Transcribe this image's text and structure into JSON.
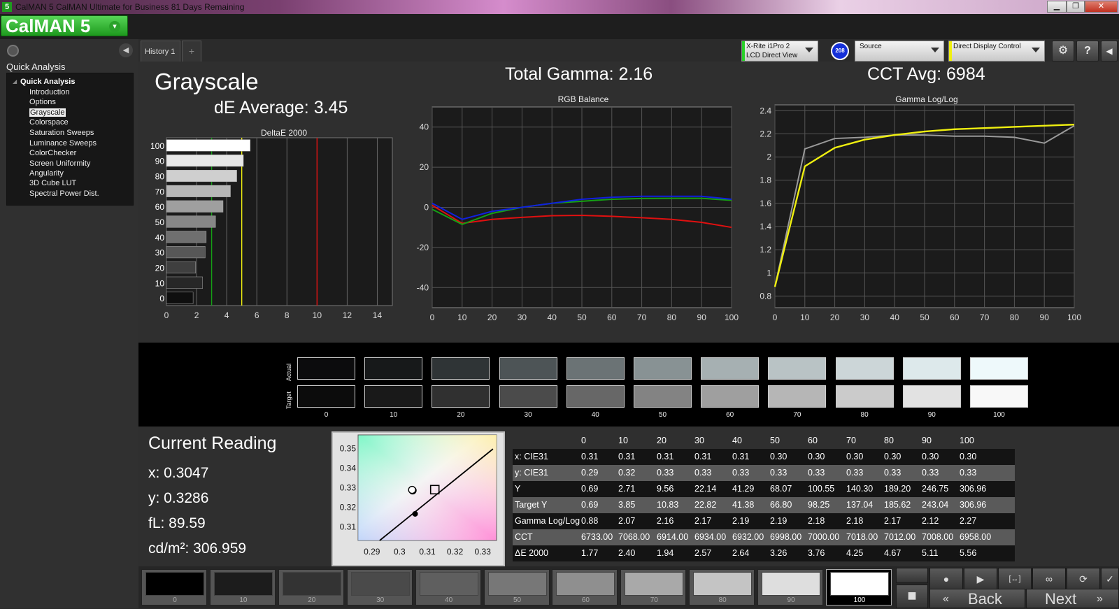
{
  "window": {
    "title": "CalMAN 5 CalMAN Ultimate for Business 81 Days Remaining",
    "app_icon": "5",
    "min": "▁",
    "max": "❐",
    "close": "✕"
  },
  "logo": {
    "text": "CalMAN 5",
    "arrow": "▾"
  },
  "sidebar": {
    "title": "Quick Analysis",
    "collapse_icon": "◀",
    "tree_root": "Quick Analysis",
    "items": [
      "Introduction",
      "Options",
      "Grayscale",
      "Colorspace",
      "Saturation Sweeps",
      "Luminance Sweeps",
      "ColorChecker",
      "Screen Uniformity",
      "Angularity",
      "3D Cube LUT",
      "Spectral Power Dist."
    ],
    "selected": "Grayscale"
  },
  "tabs": {
    "history": "History 1",
    "add": "+"
  },
  "devices": {
    "meter": {
      "line1": "X-Rite i1Pro 2",
      "line2": "LCD Direct View",
      "badge": "208"
    },
    "source": {
      "label": "Source"
    },
    "display": {
      "label": "Direct Display Control"
    }
  },
  "toolbar": {
    "settings_icon": "⚙",
    "help_icon": "?",
    "collapse_icon": "◀"
  },
  "page": {
    "title": "Grayscale",
    "de_avg": "dE Average: 3.45",
    "total_gamma": "Total Gamma: 2.16",
    "cct_avg": "CCT Avg: 6984"
  },
  "colors": {
    "red": "#e01010",
    "green": "#15a015",
    "blue": "#1020e0",
    "yellow": "#f0f010"
  },
  "chart_data": [
    {
      "type": "bar",
      "title": "DeltaE 2000",
      "orientation": "horizontal",
      "categories": [
        "100",
        "90",
        "80",
        "70",
        "60",
        "50",
        "40",
        "30",
        "20",
        "10",
        "0"
      ],
      "values": [
        5.56,
        5.11,
        4.67,
        4.25,
        3.76,
        3.26,
        2.64,
        2.57,
        1.94,
        2.4,
        1.77
      ],
      "xlim": [
        0,
        15
      ],
      "xticks": [
        0,
        2,
        4,
        6,
        8,
        10,
        12,
        14
      ],
      "thresholds": [
        {
          "value": 3,
          "color": "green"
        },
        {
          "value": 5,
          "color": "yellow"
        },
        {
          "value": 10,
          "color": "red"
        }
      ]
    },
    {
      "type": "line",
      "title": "RGB Balance",
      "x": [
        0,
        10,
        20,
        30,
        40,
        50,
        60,
        70,
        80,
        90,
        100
      ],
      "ylim": [
        -50,
        50
      ],
      "yticks": [
        40,
        20,
        0,
        -20,
        -40
      ],
      "xticks": [
        0,
        10,
        20,
        30,
        40,
        50,
        60,
        70,
        80,
        90,
        100
      ],
      "series": [
        {
          "color": "red",
          "values": [
            1,
            -8,
            -6,
            -5,
            -4.2,
            -4,
            -4.5,
            -5.2,
            -6,
            -7.5,
            -10
          ]
        },
        {
          "color": "green",
          "values": [
            -1,
            -8.5,
            -3,
            0,
            2,
            3,
            4,
            4.4,
            4.5,
            4.5,
            3.5
          ]
        },
        {
          "color": "blue",
          "values": [
            2,
            -6,
            -2,
            0,
            2,
            4,
            5,
            5.5,
            5.5,
            5.5,
            4
          ]
        }
      ]
    },
    {
      "type": "line",
      "title": "Gamma Log/Log",
      "x": [
        0,
        10,
        20,
        30,
        40,
        50,
        60,
        70,
        80,
        90,
        100
      ],
      "ylim": [
        0.7,
        2.45
      ],
      "yticks": [
        2.4,
        2.2,
        2,
        1.8,
        1.6,
        1.4,
        1.2,
        1,
        0.8
      ],
      "xticks": [
        0,
        10,
        20,
        30,
        40,
        50,
        60,
        70,
        80,
        90,
        100
      ],
      "series": [
        {
          "color": "gray",
          "values": [
            0.88,
            2.07,
            2.16,
            2.17,
            2.19,
            2.19,
            2.18,
            2.18,
            2.17,
            2.12,
            2.27
          ]
        },
        {
          "color": "yellow",
          "values": [
            0.88,
            1.92,
            2.08,
            2.15,
            2.19,
            2.22,
            2.24,
            2.25,
            2.26,
            2.27,
            2.28
          ]
        }
      ]
    },
    {
      "type": "scatter",
      "title": "",
      "xlim": [
        0.285,
        0.335
      ],
      "ylim": [
        0.303,
        0.357
      ],
      "xticks": [
        "0.29",
        "0.3",
        "0.31",
        "0.32",
        "0.33"
      ],
      "yticks": [
        "0.35",
        "0.34",
        "0.33",
        "0.32",
        "0.31"
      ],
      "target": {
        "x": 0.3127,
        "y": 0.329
      },
      "measured": [
        {
          "x": 0.3047,
          "y": 0.3286
        },
        {
          "x": 0.3045,
          "y": 0.3289
        }
      ],
      "locus": {
        "start": [
          0.2928,
          0.303
        ],
        "end": [
          0.3337,
          0.3498
        ],
        "dot": [
          0.3056,
          0.3166
        ]
      }
    }
  ],
  "swatches": {
    "labels": [
      "0",
      "10",
      "20",
      "30",
      "40",
      "50",
      "60",
      "70",
      "80",
      "90",
      "100"
    ],
    "actual_label": "Actual",
    "target_label": "Target",
    "actual": [
      "#0c0c0d",
      "#17191a",
      "#2f3436",
      "#4d5456",
      "#6b7375",
      "#889294",
      "#a6b0b2",
      "#b9c3c5",
      "#ccd6d8",
      "#dde9eb",
      "#eef9fb"
    ],
    "target": [
      "#0c0c0c",
      "#191919",
      "#303030",
      "#4b4b4b",
      "#676767",
      "#838383",
      "#9f9f9f",
      "#b6b6b6",
      "#cbcbcb",
      "#e2e2e2",
      "#f8f8f8"
    ]
  },
  "current_reading": {
    "title": "Current Reading",
    "x": "x: 0.3047",
    "y": "y: 0.3286",
    "fl": "fL: 89.59",
    "cdm2": "cd/m²: 306.959"
  },
  "table": {
    "headers": [
      "",
      "0",
      "10",
      "20",
      "30",
      "40",
      "50",
      "60",
      "70",
      "80",
      "90",
      "100"
    ],
    "rows": [
      [
        "x: CIE31",
        "0.31",
        "0.31",
        "0.31",
        "0.31",
        "0.31",
        "0.30",
        "0.30",
        "0.30",
        "0.30",
        "0.30",
        "0.30"
      ],
      [
        "y: CIE31",
        "0.29",
        "0.32",
        "0.33",
        "0.33",
        "0.33",
        "0.33",
        "0.33",
        "0.33",
        "0.33",
        "0.33",
        "0.33"
      ],
      [
        "Y",
        "0.69",
        "2.71",
        "9.56",
        "22.14",
        "41.29",
        "68.07",
        "100.55",
        "140.30",
        "189.20",
        "246.75",
        "306.96"
      ],
      [
        "Target Y",
        "0.69",
        "3.85",
        "10.83",
        "22.82",
        "41.38",
        "66.80",
        "98.25",
        "137.04",
        "185.62",
        "243.04",
        "306.96"
      ],
      [
        "Gamma Log/Log",
        "0.88",
        "2.07",
        "2.16",
        "2.17",
        "2.19",
        "2.19",
        "2.18",
        "2.18",
        "2.17",
        "2.12",
        "2.27"
      ],
      [
        "CCT",
        "6733.00",
        "7068.00",
        "6914.00",
        "6934.00",
        "6932.00",
        "6998.00",
        "7000.00",
        "7018.00",
        "7012.00",
        "7008.00",
        "6958.00"
      ],
      [
        "ΔE 2000",
        "1.77",
        "2.40",
        "1.94",
        "2.57",
        "2.64",
        "3.26",
        "3.76",
        "4.25",
        "4.67",
        "5.11",
        "5.56"
      ]
    ]
  },
  "bottom_swatches": {
    "labels": [
      "0",
      "10",
      "20",
      "30",
      "40",
      "50",
      "60",
      "70",
      "80",
      "90",
      "100"
    ],
    "colors": [
      "#000000",
      "#1c1c1c",
      "#333333",
      "#4a4a4a",
      "#5f5f5f",
      "#777777",
      "#8f8f8f",
      "#a9a9a9",
      "#c4c4c4",
      "#dedede",
      "#ffffff"
    ],
    "selected": "100"
  },
  "controls": {
    "stop_icon": "■",
    "record_icon": "●",
    "play_icon": "▶",
    "fit_icon": "[↔]",
    "loop_icon": "∞",
    "refresh_icon": "⟳",
    "check_icon": "✓",
    "back": "Back",
    "next": "Next",
    "back_icon": "«",
    "next_icon": "»"
  }
}
